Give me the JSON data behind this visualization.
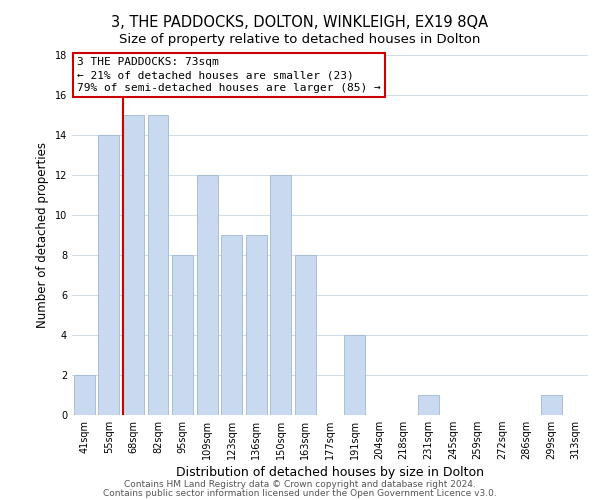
{
  "title": "3, THE PADDOCKS, DOLTON, WINKLEIGH, EX19 8QA",
  "subtitle": "Size of property relative to detached houses in Dolton",
  "xlabel": "Distribution of detached houses by size in Dolton",
  "ylabel": "Number of detached properties",
  "bar_labels": [
    "41sqm",
    "55sqm",
    "68sqm",
    "82sqm",
    "95sqm",
    "109sqm",
    "123sqm",
    "136sqm",
    "150sqm",
    "163sqm",
    "177sqm",
    "191sqm",
    "204sqm",
    "218sqm",
    "231sqm",
    "245sqm",
    "259sqm",
    "272sqm",
    "286sqm",
    "299sqm",
    "313sqm"
  ],
  "bar_values": [
    2,
    14,
    15,
    15,
    8,
    12,
    9,
    9,
    12,
    8,
    0,
    4,
    0,
    0,
    1,
    0,
    0,
    0,
    0,
    1,
    0
  ],
  "bar_color": "#c9d9f0",
  "bar_edge_color": "#a0b8d0",
  "vline_index": 2,
  "vline_color": "#cc0000",
  "annotation_title": "3 THE PADDOCKS: 73sqm",
  "annotation_line1": "← 21% of detached houses are smaller (23)",
  "annotation_line2": "79% of semi-detached houses are larger (85) →",
  "annotation_box_color": "#ffffff",
  "annotation_box_edge": "#cc0000",
  "ylim": [
    0,
    18
  ],
  "yticks": [
    0,
    2,
    4,
    6,
    8,
    10,
    12,
    14,
    16,
    18
  ],
  "footer_line1": "Contains HM Land Registry data © Crown copyright and database right 2024.",
  "footer_line2": "Contains public sector information licensed under the Open Government Licence v3.0.",
  "bg_color": "#ffffff",
  "grid_color": "#d0dce8",
  "title_fontsize": 10.5,
  "subtitle_fontsize": 9.5,
  "xlabel_fontsize": 9,
  "ylabel_fontsize": 8.5,
  "tick_fontsize": 7,
  "annotation_fontsize": 8,
  "footer_fontsize": 6.5
}
